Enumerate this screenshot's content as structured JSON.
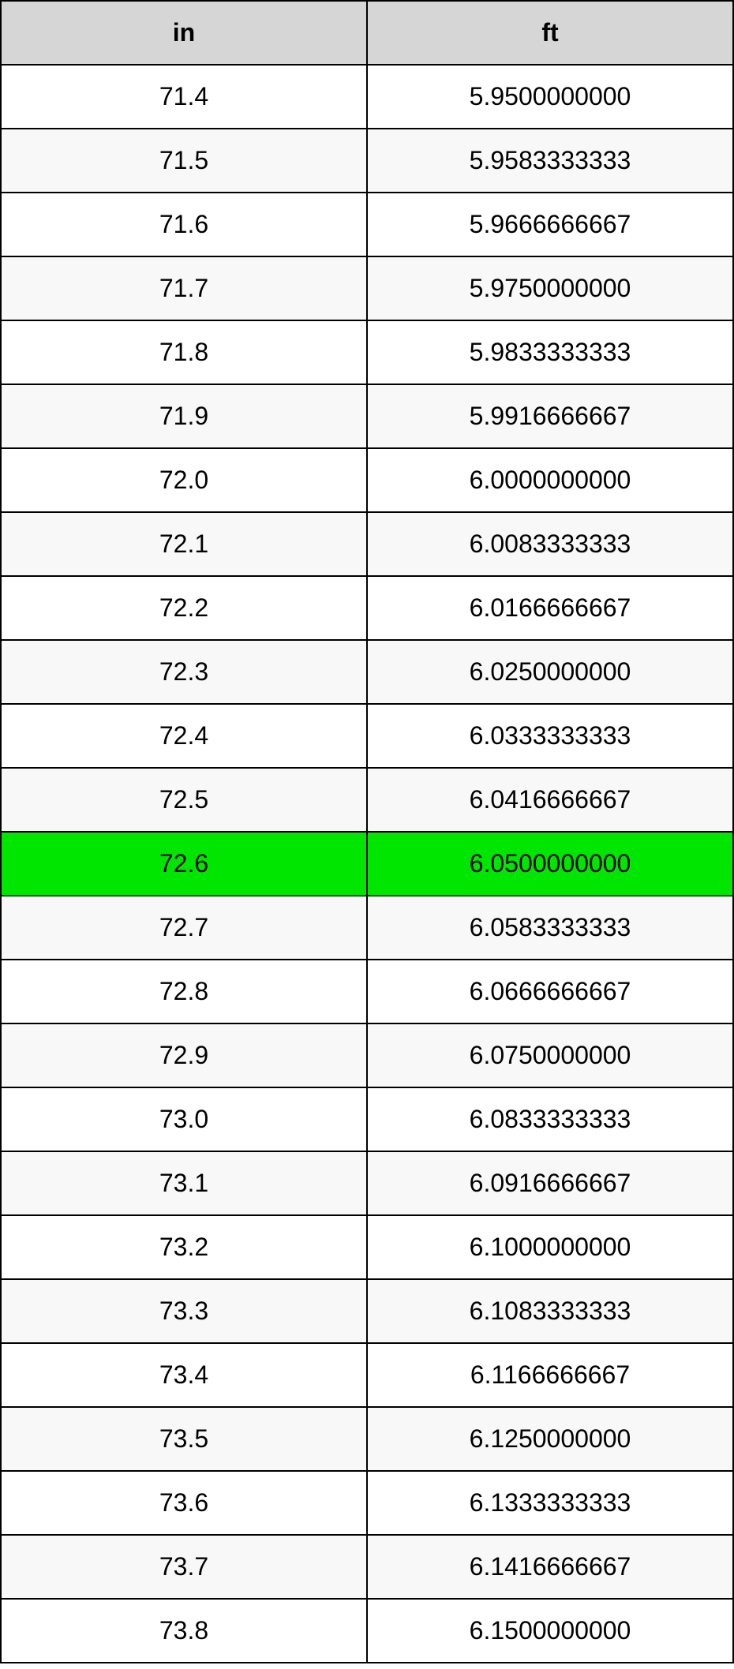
{
  "table": {
    "type": "table",
    "columns": [
      "in",
      "ft"
    ],
    "header_bg": "#d6d6d6",
    "header_color": "#000000",
    "border_color": "#000000",
    "row_odd_bg": "#ffffff",
    "row_even_bg": "#f8f8f8",
    "highlight_bg": "#00e600",
    "text_color": "#000000",
    "highlight_index": 12,
    "rows": [
      [
        "71.4",
        "5.9500000000"
      ],
      [
        "71.5",
        "5.9583333333"
      ],
      [
        "71.6",
        "5.9666666667"
      ],
      [
        "71.7",
        "5.9750000000"
      ],
      [
        "71.8",
        "5.9833333333"
      ],
      [
        "71.9",
        "5.9916666667"
      ],
      [
        "72.0",
        "6.0000000000"
      ],
      [
        "72.1",
        "6.0083333333"
      ],
      [
        "72.2",
        "6.0166666667"
      ],
      [
        "72.3",
        "6.0250000000"
      ],
      [
        "72.4",
        "6.0333333333"
      ],
      [
        "72.5",
        "6.0416666667"
      ],
      [
        "72.6",
        "6.0500000000"
      ],
      [
        "72.7",
        "6.0583333333"
      ],
      [
        "72.8",
        "6.0666666667"
      ],
      [
        "72.9",
        "6.0750000000"
      ],
      [
        "73.0",
        "6.0833333333"
      ],
      [
        "73.1",
        "6.0916666667"
      ],
      [
        "73.2",
        "6.1000000000"
      ],
      [
        "73.3",
        "6.1083333333"
      ],
      [
        "73.4",
        "6.1166666667"
      ],
      [
        "73.5",
        "6.1250000000"
      ],
      [
        "73.6",
        "6.1333333333"
      ],
      [
        "73.7",
        "6.1416666667"
      ],
      [
        "73.8",
        "6.1500000000"
      ]
    ]
  }
}
